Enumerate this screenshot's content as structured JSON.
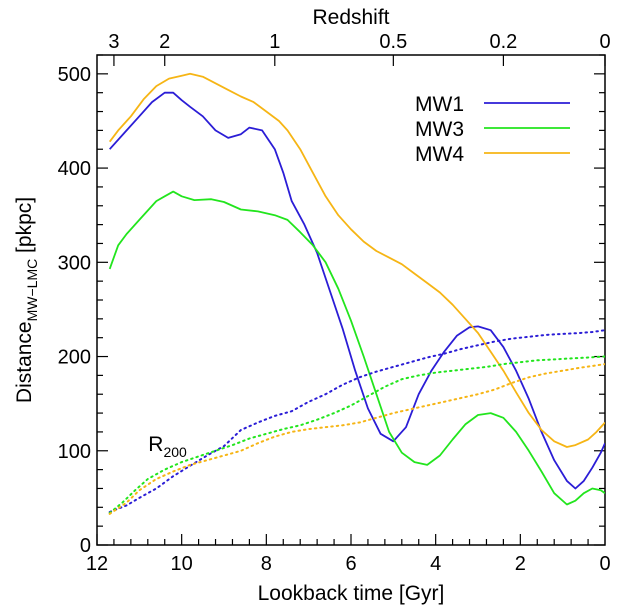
{
  "chart_data": {
    "type": "line",
    "xlabel": "Lookback time [Gyr]",
    "ylabel": "Distance",
    "ylabel_sub": "MW−LMC",
    "ylabel_unit": " [pkpc]",
    "top_axis_title": "Redshift",
    "xlim": [
      12,
      0
    ],
    "ylim": [
      0,
      520
    ],
    "x_ticks": [
      12,
      10,
      8,
      6,
      4,
      2,
      0
    ],
    "y_ticks": [
      0,
      100,
      200,
      300,
      400,
      500
    ],
    "top_ticks": [
      {
        "label": "3",
        "x": 11.6
      },
      {
        "label": "2",
        "x": 10.4
      },
      {
        "label": "1",
        "x": 7.8
      },
      {
        "label": "0.5",
        "x": 5.0
      },
      {
        "label": "0.2",
        "x": 2.4
      },
      {
        "label": "0",
        "x": 0.0
      }
    ],
    "annotation": {
      "text": "R",
      "sub": "200",
      "x": 10.6,
      "y": 100
    },
    "legend_position": "top-right",
    "series": [
      {
        "name": "MW1",
        "color": "#2b1dd6",
        "style": "solid",
        "points": [
          [
            11.7,
            420
          ],
          [
            11.3,
            440
          ],
          [
            11.0,
            455
          ],
          [
            10.7,
            470
          ],
          [
            10.4,
            480
          ],
          [
            10.2,
            480
          ],
          [
            10.0,
            472
          ],
          [
            9.8,
            465
          ],
          [
            9.5,
            455
          ],
          [
            9.2,
            440
          ],
          [
            8.9,
            432
          ],
          [
            8.6,
            436
          ],
          [
            8.4,
            443
          ],
          [
            8.1,
            440
          ],
          [
            7.8,
            420
          ],
          [
            7.6,
            395
          ],
          [
            7.4,
            365
          ],
          [
            7.1,
            340
          ],
          [
            6.8,
            310
          ],
          [
            6.5,
            270
          ],
          [
            6.2,
            230
          ],
          [
            5.9,
            185
          ],
          [
            5.6,
            145
          ],
          [
            5.3,
            118
          ],
          [
            5.0,
            110
          ],
          [
            4.7,
            125
          ],
          [
            4.4,
            160
          ],
          [
            4.1,
            185
          ],
          [
            3.8,
            205
          ],
          [
            3.5,
            222
          ],
          [
            3.2,
            231
          ],
          [
            3.0,
            232
          ],
          [
            2.7,
            228
          ],
          [
            2.4,
            210
          ],
          [
            2.1,
            185
          ],
          [
            1.8,
            155
          ],
          [
            1.5,
            120
          ],
          [
            1.2,
            90
          ],
          [
            0.9,
            68
          ],
          [
            0.7,
            60
          ],
          [
            0.5,
            68
          ],
          [
            0.3,
            82
          ],
          [
            0.1,
            98
          ],
          [
            0.0,
            108
          ]
        ]
      },
      {
        "name": "MW3",
        "color": "#22e51d",
        "style": "solid",
        "points": [
          [
            11.7,
            293
          ],
          [
            11.5,
            318
          ],
          [
            11.3,
            330
          ],
          [
            11.0,
            345
          ],
          [
            10.8,
            355
          ],
          [
            10.6,
            365
          ],
          [
            10.4,
            370
          ],
          [
            10.2,
            375
          ],
          [
            10.0,
            370
          ],
          [
            9.7,
            366
          ],
          [
            9.3,
            367
          ],
          [
            9.0,
            364
          ],
          [
            8.6,
            356
          ],
          [
            8.2,
            354
          ],
          [
            7.8,
            350
          ],
          [
            7.5,
            345
          ],
          [
            7.2,
            332
          ],
          [
            6.9,
            318
          ],
          [
            6.6,
            300
          ],
          [
            6.3,
            272
          ],
          [
            6.0,
            238
          ],
          [
            5.7,
            200
          ],
          [
            5.4,
            160
          ],
          [
            5.1,
            120
          ],
          [
            4.8,
            98
          ],
          [
            4.5,
            88
          ],
          [
            4.2,
            85
          ],
          [
            3.9,
            95
          ],
          [
            3.6,
            112
          ],
          [
            3.3,
            128
          ],
          [
            3.0,
            138
          ],
          [
            2.7,
            140
          ],
          [
            2.4,
            135
          ],
          [
            2.1,
            120
          ],
          [
            1.8,
            100
          ],
          [
            1.5,
            78
          ],
          [
            1.2,
            55
          ],
          [
            0.9,
            43
          ],
          [
            0.7,
            47
          ],
          [
            0.5,
            55
          ],
          [
            0.3,
            60
          ],
          [
            0.1,
            58
          ],
          [
            0.0,
            55
          ]
        ]
      },
      {
        "name": "MW4",
        "color": "#f6b515",
        "style": "solid",
        "points": [
          [
            11.7,
            428
          ],
          [
            11.5,
            440
          ],
          [
            11.2,
            455
          ],
          [
            10.9,
            473
          ],
          [
            10.6,
            487
          ],
          [
            10.3,
            495
          ],
          [
            10.0,
            498
          ],
          [
            9.8,
            500
          ],
          [
            9.5,
            497
          ],
          [
            9.2,
            490
          ],
          [
            8.9,
            483
          ],
          [
            8.6,
            476
          ],
          [
            8.3,
            470
          ],
          [
            8.0,
            460
          ],
          [
            7.7,
            450
          ],
          [
            7.5,
            440
          ],
          [
            7.2,
            420
          ],
          [
            6.9,
            395
          ],
          [
            6.6,
            370
          ],
          [
            6.3,
            350
          ],
          [
            6.0,
            335
          ],
          [
            5.7,
            322
          ],
          [
            5.4,
            312
          ],
          [
            5.1,
            305
          ],
          [
            4.8,
            298
          ],
          [
            4.5,
            288
          ],
          [
            4.2,
            278
          ],
          [
            3.9,
            268
          ],
          [
            3.6,
            255
          ],
          [
            3.3,
            240
          ],
          [
            3.0,
            225
          ],
          [
            2.7,
            205
          ],
          [
            2.4,
            185
          ],
          [
            2.1,
            162
          ],
          [
            1.8,
            140
          ],
          [
            1.5,
            122
          ],
          [
            1.2,
            110
          ],
          [
            0.9,
            104
          ],
          [
            0.7,
            106
          ],
          [
            0.4,
            112
          ],
          [
            0.2,
            120
          ],
          [
            0.0,
            130
          ]
        ]
      },
      {
        "name": "MW1 R200",
        "color": "#2b1dd6",
        "style": "dotted",
        "points": [
          [
            11.7,
            35
          ],
          [
            11.3,
            42
          ],
          [
            11.0,
            50
          ],
          [
            10.6,
            60
          ],
          [
            10.2,
            73
          ],
          [
            9.8,
            84
          ],
          [
            9.4,
            95
          ],
          [
            9.0,
            105
          ],
          [
            8.6,
            122
          ],
          [
            8.2,
            130
          ],
          [
            7.8,
            137
          ],
          [
            7.4,
            142
          ],
          [
            7.0,
            152
          ],
          [
            6.6,
            160
          ],
          [
            6.2,
            170
          ],
          [
            5.8,
            178
          ],
          [
            5.4,
            184
          ],
          [
            5.0,
            189
          ],
          [
            4.6,
            194
          ],
          [
            4.2,
            199
          ],
          [
            3.8,
            203
          ],
          [
            3.4,
            208
          ],
          [
            3.0,
            212
          ],
          [
            2.6,
            216
          ],
          [
            2.2,
            219
          ],
          [
            1.8,
            221
          ],
          [
            1.4,
            223
          ],
          [
            1.0,
            224
          ],
          [
            0.6,
            225
          ],
          [
            0.3,
            226
          ],
          [
            0.0,
            228
          ]
        ]
      },
      {
        "name": "MW3 R200",
        "color": "#22e51d",
        "style": "dotted",
        "points": [
          [
            11.7,
            34
          ],
          [
            11.4,
            45
          ],
          [
            11.1,
            58
          ],
          [
            10.8,
            70
          ],
          [
            10.4,
            80
          ],
          [
            10.0,
            88
          ],
          [
            9.6,
            94
          ],
          [
            9.2,
            100
          ],
          [
            8.8,
            106
          ],
          [
            8.4,
            113
          ],
          [
            8.0,
            118
          ],
          [
            7.6,
            123
          ],
          [
            7.2,
            127
          ],
          [
            6.8,
            133
          ],
          [
            6.4,
            140
          ],
          [
            6.0,
            148
          ],
          [
            5.6,
            158
          ],
          [
            5.2,
            168
          ],
          [
            4.8,
            176
          ],
          [
            4.4,
            180
          ],
          [
            4.0,
            183
          ],
          [
            3.6,
            185
          ],
          [
            3.2,
            187
          ],
          [
            2.8,
            189
          ],
          [
            2.4,
            192
          ],
          [
            2.0,
            194
          ],
          [
            1.6,
            196
          ],
          [
            1.2,
            197
          ],
          [
            0.8,
            198
          ],
          [
            0.4,
            199
          ],
          [
            0.0,
            200
          ]
        ]
      },
      {
        "name": "MW4 R200",
        "color": "#f6b515",
        "style": "dotted",
        "points": [
          [
            11.7,
            33
          ],
          [
            11.3,
            45
          ],
          [
            11.0,
            58
          ],
          [
            10.6,
            70
          ],
          [
            10.2,
            78
          ],
          [
            9.8,
            85
          ],
          [
            9.4,
            90
          ],
          [
            9.0,
            95
          ],
          [
            8.6,
            100
          ],
          [
            8.2,
            108
          ],
          [
            7.8,
            115
          ],
          [
            7.4,
            120
          ],
          [
            7.0,
            123
          ],
          [
            6.6,
            125
          ],
          [
            6.2,
            127
          ],
          [
            5.8,
            130
          ],
          [
            5.4,
            135
          ],
          [
            5.0,
            140
          ],
          [
            4.6,
            144
          ],
          [
            4.2,
            148
          ],
          [
            3.8,
            152
          ],
          [
            3.4,
            156
          ],
          [
            3.0,
            160
          ],
          [
            2.6,
            165
          ],
          [
            2.2,
            172
          ],
          [
            1.8,
            178
          ],
          [
            1.4,
            182
          ],
          [
            1.0,
            185
          ],
          [
            0.6,
            188
          ],
          [
            0.3,
            190
          ],
          [
            0.0,
            192
          ]
        ]
      }
    ]
  }
}
